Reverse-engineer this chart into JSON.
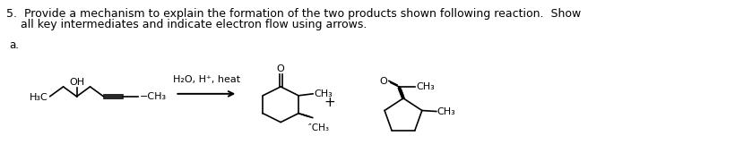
{
  "title_line1": "5.  Provide a mechanism to explain the formation of the two products shown following reaction.  Show",
  "title_line2": "    all key intermediates and indicate electron flow using arrows.",
  "label_a": "a.",
  "bg_color": "#ffffff",
  "text_color": "#000000",
  "fs_title": 9.0,
  "fs_chem": 8.0,
  "fs_label": 8.5,
  "lw": 1.2
}
